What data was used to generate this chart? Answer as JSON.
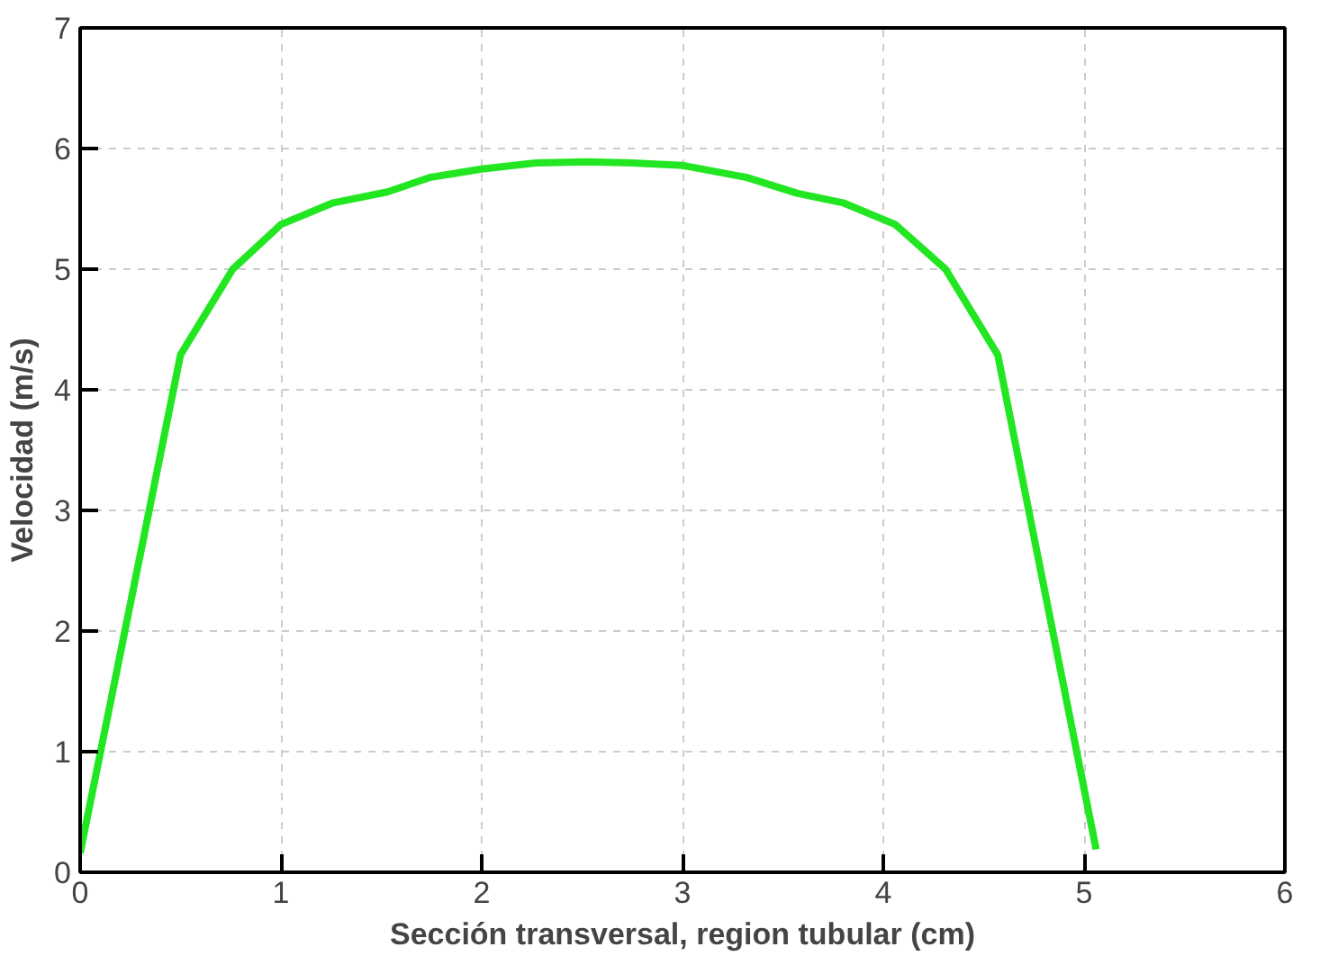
{
  "chart_data": {
    "type": "line",
    "xlabel": "Sección transversal, region tubular (cm)",
    "ylabel": "Velocidad (m/s)",
    "xlim": [
      0,
      6
    ],
    "ylim": [
      0,
      7
    ],
    "xticks": [
      0,
      1,
      2,
      3,
      4,
      5,
      6
    ],
    "yticks": [
      0,
      1,
      2,
      3,
      4,
      5,
      6,
      7
    ],
    "grid": true,
    "series": [
      {
        "color": "#22e622",
        "x": [
          0.0,
          0.5,
          0.76,
          1.0,
          1.26,
          1.53,
          1.74,
          2.0,
          2.27,
          2.52,
          2.75,
          3.0,
          3.32,
          3.57,
          3.8,
          4.06,
          4.31,
          4.57,
          5.06
        ],
        "values": [
          0.16,
          4.29,
          5.0,
          5.37,
          5.55,
          5.64,
          5.76,
          5.83,
          5.88,
          5.89,
          5.88,
          5.86,
          5.76,
          5.63,
          5.55,
          5.37,
          5.0,
          4.29,
          0.19
        ]
      }
    ]
  }
}
